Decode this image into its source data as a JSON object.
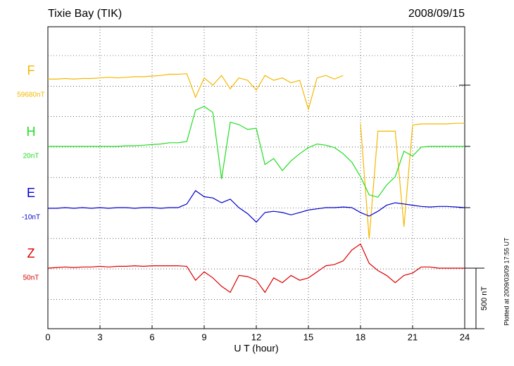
{
  "chart_data": {
    "type": "line",
    "title": "Tixie Bay (TIK)",
    "date": "2008/09/15",
    "x_label": "U T (hour)",
    "footnote": "Plotted at 2009/03/09 17:55 UT",
    "scale_bar": {
      "value": 500,
      "label": "500 nT"
    },
    "grid": true,
    "xlim": [
      0,
      24
    ],
    "xticks": [
      0,
      3,
      6,
      9,
      12,
      15,
      18,
      21,
      24
    ],
    "x": [
      0,
      0.5,
      1,
      1.5,
      2,
      2.5,
      3,
      3.5,
      4,
      4.5,
      5,
      5.5,
      6,
      6.5,
      7,
      7.5,
      8,
      8.5,
      9,
      9.5,
      10,
      10.5,
      11,
      11.5,
      12,
      12.5,
      13,
      13.5,
      14,
      14.5,
      15,
      15.5,
      16,
      16.5,
      17,
      17.5,
      18,
      18.5,
      19,
      19.5,
      20,
      20.5,
      21,
      21.5,
      22,
      22.5,
      23,
      23.5,
      24
    ],
    "series": [
      {
        "name": "F",
        "baseline_label": "59680nT",
        "color": "#f5b800",
        "values": [
          50,
          50,
          55,
          50,
          55,
          55,
          60,
          65,
          60,
          65,
          70,
          70,
          75,
          80,
          90,
          90,
          95,
          -100,
          60,
          0,
          80,
          -30,
          60,
          40,
          -40,
          80,
          40,
          60,
          20,
          40,
          -200,
          60,
          80,
          50,
          80,
          null,
          -320,
          -1270,
          -380,
          -380,
          -380,
          -1170,
          -330,
          -320,
          -320,
          -320,
          -320,
          -315,
          -315
        ]
      },
      {
        "name": "H",
        "baseline_label": "20nT",
        "color": "#22dd22",
        "values": [
          0,
          0,
          0,
          0,
          0,
          0,
          0,
          0,
          0,
          5,
          5,
          10,
          15,
          20,
          30,
          30,
          40,
          300,
          330,
          280,
          -270,
          200,
          180,
          140,
          150,
          -150,
          -100,
          -200,
          -120,
          -60,
          -10,
          20,
          10,
          -10,
          -60,
          -130,
          -250,
          -400,
          -420,
          -320,
          -250,
          -40,
          -80,
          -5,
          0,
          0,
          0,
          0,
          0
        ]
      },
      {
        "name": "E",
        "baseline_label": "-10nT",
        "color": "#0000cc",
        "values": [
          -5,
          -5,
          0,
          -5,
          0,
          -5,
          0,
          -5,
          0,
          0,
          -5,
          0,
          0,
          -5,
          0,
          0,
          30,
          140,
          90,
          80,
          40,
          70,
          0,
          -50,
          -120,
          -40,
          -30,
          -40,
          -60,
          -40,
          -20,
          -10,
          0,
          0,
          5,
          0,
          -40,
          -70,
          -30,
          20,
          40,
          30,
          20,
          10,
          5,
          10,
          10,
          5,
          0
        ]
      },
      {
        "name": "Z",
        "baseline_label": "50nT",
        "color": "#dd0000",
        "values": [
          0,
          5,
          10,
          5,
          10,
          10,
          15,
          10,
          15,
          15,
          20,
          15,
          20,
          20,
          20,
          20,
          15,
          -100,
          -30,
          -80,
          -150,
          -200,
          -60,
          -70,
          -100,
          -200,
          -80,
          -120,
          -60,
          -100,
          -80,
          -30,
          20,
          30,
          60,
          150,
          200,
          40,
          -20,
          -60,
          -120,
          -60,
          -40,
          10,
          10,
          0,
          0,
          0,
          0
        ]
      }
    ]
  }
}
